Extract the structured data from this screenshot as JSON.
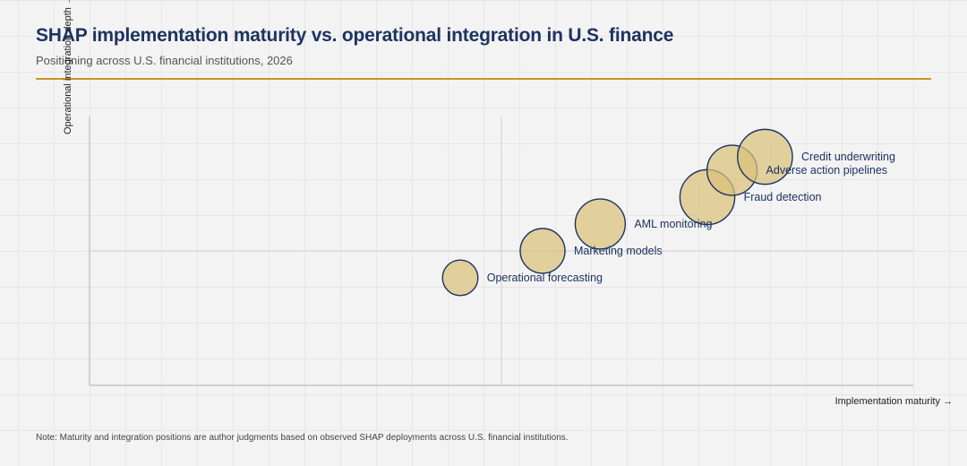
{
  "header": {
    "title": "SHAP implementation maturity vs. operational integration in U.S. finance",
    "subtitle": "Positioning across U.S. financial institutions, 2026"
  },
  "chart_data": {
    "type": "scatter",
    "title": "SHAP implementation maturity vs. operational integration in U.S. finance",
    "subtitle": "Positioning across U.S. financial institutions, 2026",
    "xlabel": "Implementation maturity →",
    "ylabel": "Operational integration depth →",
    "xlim": [
      0,
      10
    ],
    "ylim": [
      0,
      10
    ],
    "grid": false,
    "legend": "none",
    "colors": {
      "bubble_fill": "#d9c07a",
      "bubble_stroke": "#1d3361",
      "label": "#1d3361",
      "accent_rule": "#c8952b"
    },
    "points": [
      {
        "label": "Operational forecasting",
        "x": 4.5,
        "y": 4.0,
        "size": 2.5
      },
      {
        "label": "Marketing models",
        "x": 5.5,
        "y": 5.0,
        "size": 4.0
      },
      {
        "label": "AML monitoring",
        "x": 6.2,
        "y": 6.0,
        "size": 5.0
      },
      {
        "label": "Fraud detection",
        "x": 7.5,
        "y": 7.0,
        "size": 6.0
      },
      {
        "label": "Adverse action pipelines",
        "x": 7.8,
        "y": 8.0,
        "size": 5.0
      },
      {
        "label": "Credit underwriting",
        "x": 8.2,
        "y": 8.5,
        "size": 6.0
      }
    ]
  },
  "footer": {
    "note": "Note: Maturity and integration positions are author judgments based on observed SHAP deployments across U.S. financial institutions."
  }
}
